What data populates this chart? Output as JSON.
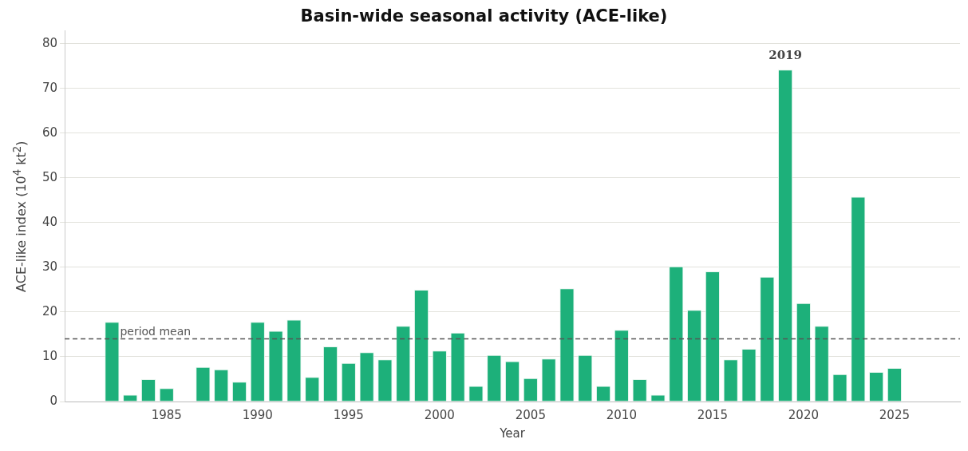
{
  "chart_data": {
    "type": "bar",
    "title": "Basin-wide seasonal activity (ACE-like)",
    "xlabel": "Year",
    "ylabel": "ACE-like index (10$^{4}$ kt$^{2}$)",
    "x": [
      1982,
      1983,
      1984,
      1985,
      1986,
      1987,
      1988,
      1989,
      1990,
      1991,
      1992,
      1993,
      1994,
      1995,
      1996,
      1997,
      1998,
      1999,
      2000,
      2001,
      2002,
      2003,
      2004,
      2005,
      2006,
      2007,
      2008,
      2009,
      2010,
      2011,
      2012,
      2013,
      2014,
      2015,
      2016,
      2017,
      2018,
      2019,
      2020,
      2021,
      2022,
      2023,
      2024,
      2025
    ],
    "values": [
      17.8,
      1.5,
      5.0,
      3.0,
      null,
      7.7,
      7.2,
      4.4,
      17.8,
      15.8,
      18.3,
      5.5,
      12.3,
      8.6,
      11.0,
      9.4,
      16.9,
      25.0,
      11.4,
      15.4,
      3.5,
      10.4,
      9.0,
      5.2,
      9.6,
      25.3,
      10.4,
      3.5,
      16.0,
      5.0,
      1.5,
      30.2,
      20.5,
      29.1,
      9.4,
      11.8,
      27.9,
      74.2,
      22.0,
      16.9,
      6.1,
      45.8,
      6.6,
      7.5
    ],
    "color": "#1db07a",
    "xlim": [
      1979.4,
      2028.6
    ],
    "xticks": [
      1985,
      1990,
      1995,
      2000,
      2005,
      2010,
      2015,
      2020,
      2025
    ],
    "ylim": [
      0,
      83
    ],
    "yticks": [
      0,
      10,
      20,
      30,
      40,
      50,
      60,
      70,
      80
    ],
    "grid": "y",
    "legend": false,
    "ref_lines": [
      {
        "axis": "y",
        "value": 14,
        "label": "period mean",
        "color": "#555555",
        "line_style": "dashed"
      }
    ],
    "annotations": [
      {
        "text": "2019",
        "x": 2019,
        "y": 74.2
      }
    ]
  }
}
